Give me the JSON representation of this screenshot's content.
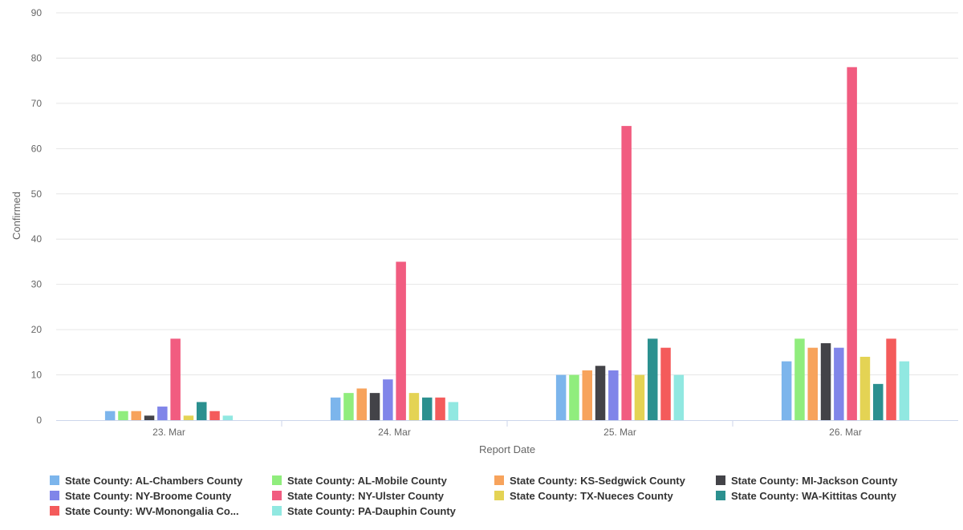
{
  "chart_data": {
    "type": "bar",
    "xlabel": "Report Date",
    "ylabel": "Confirmed",
    "categories": [
      "23. Mar",
      "24. Mar",
      "25. Mar",
      "26. Mar"
    ],
    "ylim": [
      0,
      90
    ],
    "yticks": [
      0,
      10,
      20,
      30,
      40,
      50,
      60,
      70,
      80,
      90
    ],
    "grid": true,
    "legend_position": "bottom",
    "series": [
      {
        "name": "State County: AL-Chambers County",
        "color": "#7cb5ec",
        "values": [
          2,
          5,
          10,
          13
        ]
      },
      {
        "name": "State County: AL-Mobile County",
        "color": "#90ed7d",
        "values": [
          2,
          6,
          10,
          18
        ]
      },
      {
        "name": "State County: KS-Sedgwick County",
        "color": "#f7a35c",
        "values": [
          2,
          7,
          11,
          16
        ]
      },
      {
        "name": "State County: MI-Jackson County",
        "color": "#434348",
        "values": [
          1,
          6,
          12,
          17
        ]
      },
      {
        "name": "State County: NY-Broome County",
        "color": "#8085e9",
        "values": [
          3,
          9,
          11,
          16
        ]
      },
      {
        "name": "State County: NY-Ulster County",
        "color": "#f15c80",
        "values": [
          18,
          35,
          65,
          78
        ]
      },
      {
        "name": "State County: TX-Nueces County",
        "color": "#e4d354",
        "values": [
          1,
          6,
          10,
          14
        ]
      },
      {
        "name": "State County: WA-Kittitas County",
        "color": "#2b908f",
        "values": [
          4,
          5,
          18,
          8
        ]
      },
      {
        "name": "State County: WV-Monongalia Co...",
        "color": "#f45b5b",
        "values": [
          2,
          5,
          16,
          18
        ]
      },
      {
        "name": "State County: PA-Dauphin County",
        "color": "#91e8e1",
        "values": [
          1,
          4,
          10,
          13
        ]
      }
    ]
  }
}
